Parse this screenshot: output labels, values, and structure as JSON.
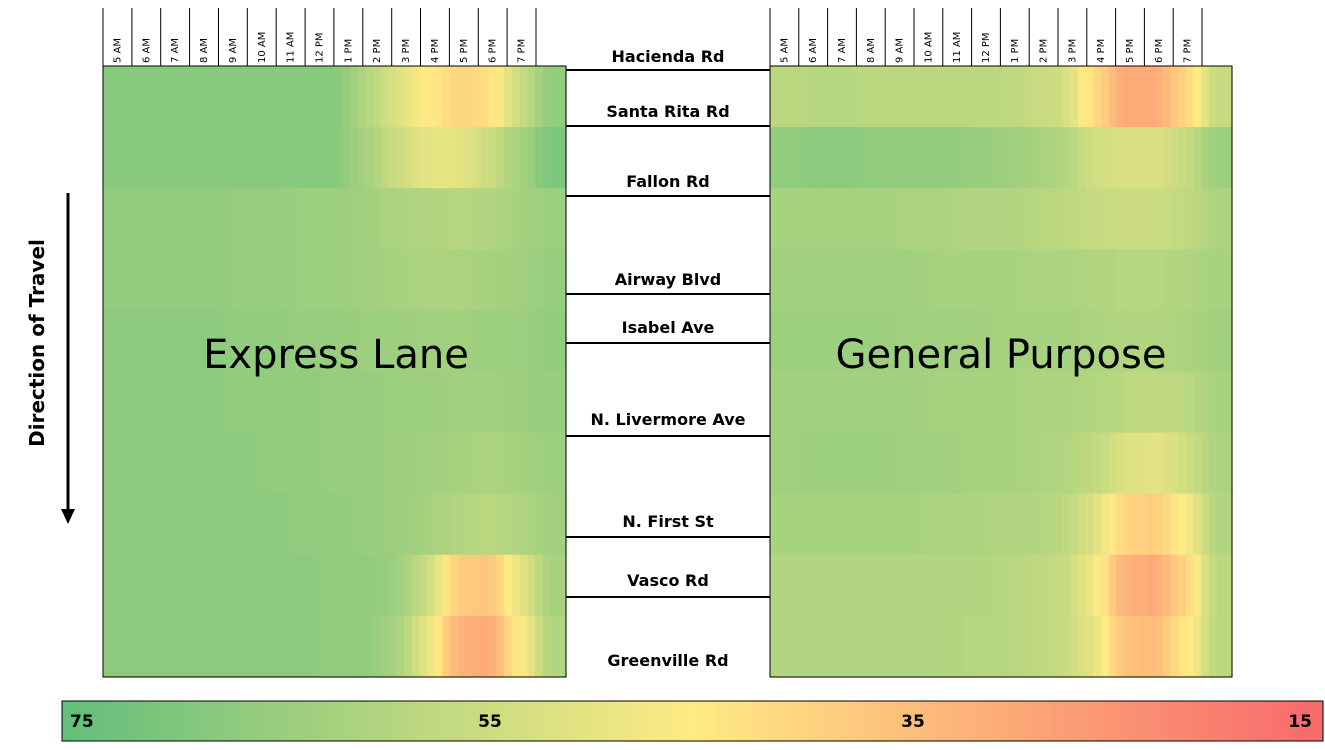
{
  "chart_data": {
    "type": "heatmap",
    "times": [
      "5 AM",
      "6 AM",
      "7 AM",
      "8 AM",
      "9 AM",
      "10 AM",
      "11 AM",
      "12 PM",
      "1 PM",
      "2 PM",
      "3 PM",
      "4 PM",
      "5 PM",
      "6 PM",
      "7 PM"
    ],
    "segments": [
      "Hacienda Rd",
      "Santa Rita Rd",
      "Fallon Rd",
      "Airway Blvd",
      "Isabel Ave",
      "N. Livermore Ave",
      "N. First St",
      "Vasco Rd",
      "Greenville Rd"
    ],
    "direction_label": "Direction of Travel",
    "color_scale": {
      "ticks": [
        "75",
        "55",
        "35",
        "15"
      ],
      "min": 15,
      "max": 75,
      "colors": {
        "high": "#63be7b",
        "mid": "#ffeb84",
        "low": "#f8696b"
      }
    },
    "panels": [
      {
        "label": "Express Lane",
        "rows": [
          [
            68,
            68,
            68,
            68,
            68,
            68,
            68,
            68,
            60,
            52,
            45,
            40,
            42,
            55,
            66
          ],
          [
            68,
            68,
            68,
            68,
            68,
            68,
            68,
            68,
            62,
            55,
            50,
            50,
            55,
            62,
            70
          ],
          [
            66,
            66,
            66,
            66,
            65,
            65,
            64,
            64,
            63,
            61,
            60,
            59,
            60,
            62,
            64
          ],
          [
            66,
            66,
            66,
            66,
            65,
            65,
            64,
            64,
            63,
            62,
            61,
            61,
            62,
            63,
            65
          ],
          [
            67,
            67,
            67,
            67,
            66,
            66,
            65,
            65,
            64,
            64,
            63,
            63,
            64,
            64,
            66
          ],
          [
            67,
            67,
            67,
            67,
            66,
            66,
            66,
            65,
            65,
            64,
            64,
            63,
            63,
            64,
            65
          ],
          [
            67,
            67,
            67,
            67,
            67,
            66,
            66,
            65,
            65,
            64,
            63,
            62,
            61,
            62,
            64
          ],
          [
            67,
            67,
            67,
            67,
            67,
            67,
            66,
            66,
            65,
            64,
            62,
            60,
            58,
            60,
            63
          ],
          [
            67,
            67,
            67,
            67,
            67,
            67,
            67,
            66,
            66,
            64,
            55,
            38,
            36,
            50,
            62
          ],
          [
            67,
            67,
            67,
            67,
            67,
            67,
            67,
            66,
            66,
            62,
            50,
            32,
            30,
            45,
            60
          ]
        ]
      },
      {
        "label": "General Purpose",
        "rows": [
          [
            58,
            59,
            59,
            58,
            58,
            58,
            58,
            58,
            56,
            54,
            42,
            30,
            30,
            40,
            56
          ],
          [
            66,
            67,
            67,
            66,
            66,
            66,
            65,
            64,
            62,
            60,
            54,
            52,
            52,
            56,
            64
          ],
          [
            62,
            62,
            62,
            62,
            61,
            61,
            60,
            60,
            59,
            58,
            56,
            55,
            55,
            57,
            61
          ],
          [
            63,
            63,
            63,
            63,
            63,
            62,
            62,
            62,
            61,
            61,
            60,
            59,
            59,
            60,
            62
          ],
          [
            64,
            64,
            64,
            64,
            63,
            63,
            63,
            62,
            62,
            62,
            61,
            60,
            60,
            61,
            63
          ],
          [
            63,
            63,
            63,
            63,
            63,
            62,
            62,
            62,
            61,
            61,
            60,
            58,
            57,
            58,
            62
          ],
          [
            63,
            64,
            64,
            64,
            63,
            63,
            62,
            62,
            61,
            60,
            57,
            52,
            50,
            54,
            61
          ],
          [
            62,
            62,
            62,
            62,
            62,
            61,
            61,
            60,
            60,
            58,
            52,
            40,
            38,
            46,
            60
          ],
          [
            60,
            60,
            60,
            60,
            60,
            60,
            60,
            59,
            58,
            56,
            48,
            32,
            30,
            40,
            58
          ],
          [
            60,
            60,
            60,
            60,
            60,
            60,
            59,
            59,
            58,
            56,
            50,
            36,
            34,
            44,
            58
          ]
        ]
      }
    ]
  }
}
